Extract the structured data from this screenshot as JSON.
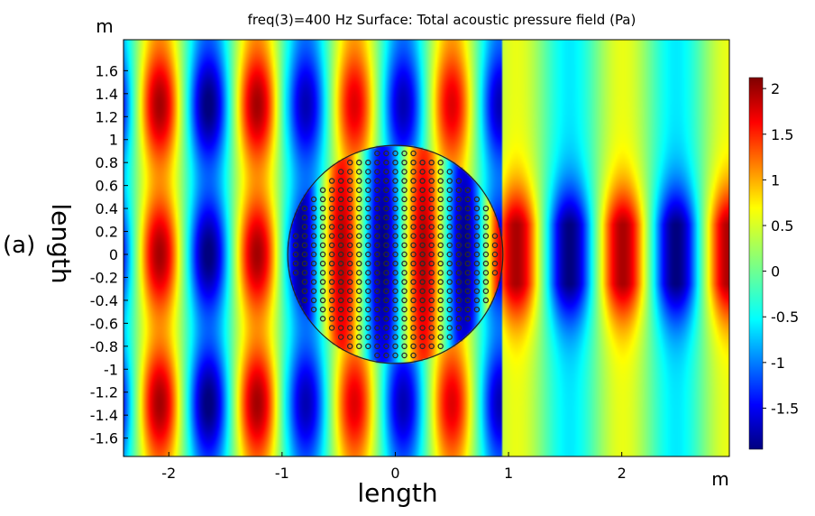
{
  "chart_data": {
    "type": "heatmap",
    "title": "freq(3)=400 Hz    Surface: Total acoustic pressure field (Pa)",
    "panel_label": "(a)",
    "xlabel": "length",
    "ylabel": "length",
    "x_unit": "m",
    "y_unit": "m",
    "xlim": [
      -2.4,
      2.95
    ],
    "ylim": [
      -1.76,
      1.87
    ],
    "x_ticks": [
      "-2",
      "-1",
      "0",
      "1",
      "2"
    ],
    "y_ticks": [
      "1.6",
      "1.4",
      "1.2",
      "1",
      "0.8",
      "0.6",
      "0.4",
      "0.2",
      "0",
      "-0.2",
      "-0.4",
      "-0.6",
      "-0.8",
      "-1",
      "-1.2",
      "-1.4",
      "-1.6"
    ],
    "colorbar": {
      "ticks": [
        "2",
        "1.5",
        "1",
        "0.5",
        "0",
        "-0.5",
        "-1",
        "-1.5"
      ],
      "min": -1.95,
      "max": 2.12,
      "colormap": "rainbow (blue to red)"
    },
    "overlay": {
      "shape": "circle",
      "center": [
        0,
        0
      ],
      "radius": 0.95,
      "scatterer_spacing": 0.08
    },
    "colors": {
      "low": "#00007f",
      "mid": "#80ff80",
      "high": "#7f0000"
    }
  }
}
